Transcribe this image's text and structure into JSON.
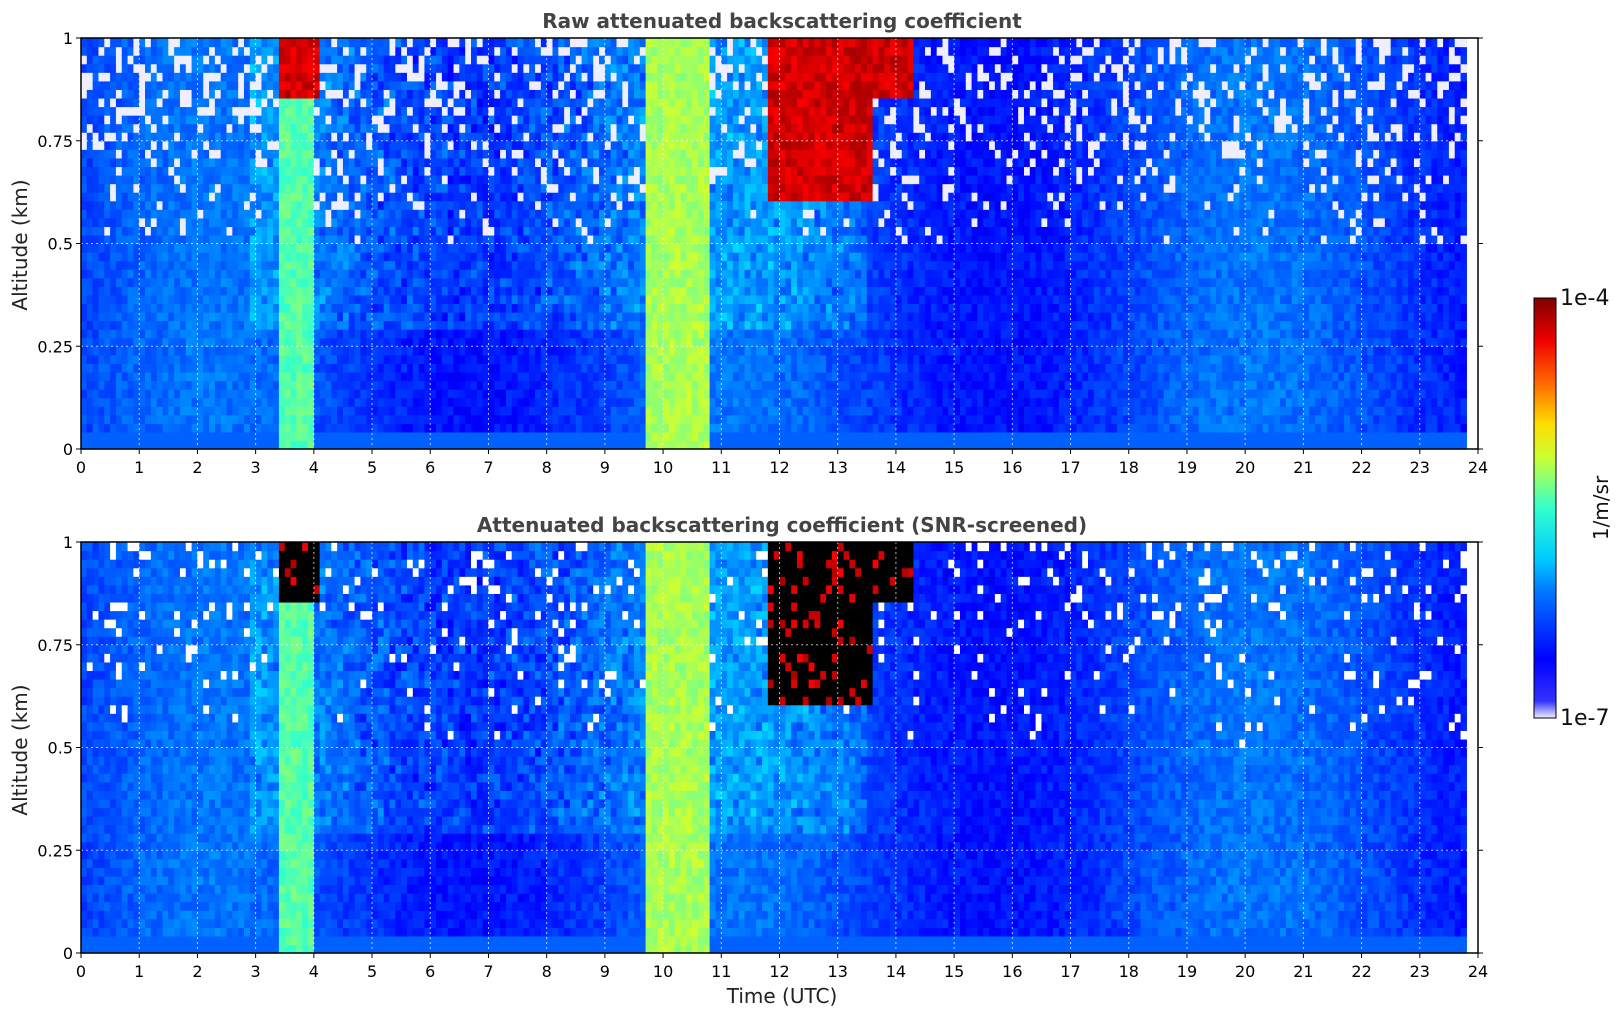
{
  "chart_data": [
    {
      "type": "heatmap",
      "title": "Raw attenuated backscattering coefficient",
      "xlabel": "",
      "ylabel": "Altitude (km)",
      "xlim": [
        0,
        24
      ],
      "ylim": [
        0,
        1
      ],
      "x_ticks": [
        "0",
        "1",
        "2",
        "3",
        "4",
        "5",
        "6",
        "7",
        "8",
        "9",
        "10",
        "11",
        "12",
        "13",
        "14",
        "15",
        "16",
        "17",
        "18",
        "19",
        "20",
        "21",
        "22",
        "23",
        "24"
      ],
      "y_ticks": [
        "0",
        "0.25",
        "0.5",
        "0.75",
        "1"
      ],
      "grid": true,
      "screened": false,
      "data_end_hour": 23.8,
      "features": [
        {
          "name": "aerosol plume",
          "t_start": 3.45,
          "t_end": 4.0,
          "alt_min": 0.0,
          "alt_max": 1.0,
          "level": "high"
        },
        {
          "name": "cloud top",
          "t_start": 3.4,
          "t_end": 4.1,
          "alt_min": 0.85,
          "alt_max": 1.0,
          "level": "max"
        },
        {
          "name": "precipitation",
          "t_start": 9.75,
          "t_end": 10.85,
          "alt_min": 0.0,
          "alt_max": 1.0,
          "level": "medium-high"
        },
        {
          "name": "descending cloud",
          "t_start": 11.8,
          "t_end": 13.6,
          "alt_min": 0.6,
          "alt_max": 1.0,
          "level": "max"
        },
        {
          "name": "cloud",
          "t_start": 13.3,
          "t_end": 14.3,
          "alt_min": 0.85,
          "alt_max": 1.0,
          "level": "max"
        }
      ]
    },
    {
      "type": "heatmap",
      "title": "Attenuated backscattering coefficient (SNR-screened)",
      "xlabel": "Time (UTC)",
      "ylabel": "Altitude (km)",
      "xlim": [
        0,
        24
      ],
      "ylim": [
        0,
        1
      ],
      "x_ticks": [
        "0",
        "1",
        "2",
        "3",
        "4",
        "5",
        "6",
        "7",
        "8",
        "9",
        "10",
        "11",
        "12",
        "13",
        "14",
        "15",
        "16",
        "17",
        "18",
        "19",
        "20",
        "21",
        "22",
        "23",
        "24"
      ],
      "y_ticks": [
        "0",
        "0.25",
        "0.5",
        "0.75",
        "1"
      ],
      "grid": true,
      "screened": true,
      "data_end_hour": 23.8,
      "features": [
        {
          "name": "aerosol plume",
          "t_start": 3.45,
          "t_end": 4.0,
          "alt_min": 0.0,
          "alt_max": 1.0,
          "level": "high"
        },
        {
          "name": "saturated cloud top",
          "t_start": 3.4,
          "t_end": 4.1,
          "alt_min": 0.85,
          "alt_max": 1.0,
          "level": "saturated"
        },
        {
          "name": "precipitation",
          "t_start": 9.75,
          "t_end": 10.85,
          "alt_min": 0.0,
          "alt_max": 1.0,
          "level": "medium-high"
        },
        {
          "name": "saturated descending cloud",
          "t_start": 11.8,
          "t_end": 13.6,
          "alt_min": 0.6,
          "alt_max": 1.0,
          "level": "saturated"
        },
        {
          "name": "saturated cloud",
          "t_start": 13.3,
          "t_end": 14.3,
          "alt_min": 0.85,
          "alt_max": 1.0,
          "level": "saturated"
        }
      ]
    }
  ],
  "colorbar": {
    "label": "1/m/sr",
    "max_label": "1e-4",
    "min_label": "1e-7",
    "colormap": "jet",
    "min_color": "#eeeeff",
    "saturated_color": "#000000",
    "screened_color": "#ffffff"
  }
}
